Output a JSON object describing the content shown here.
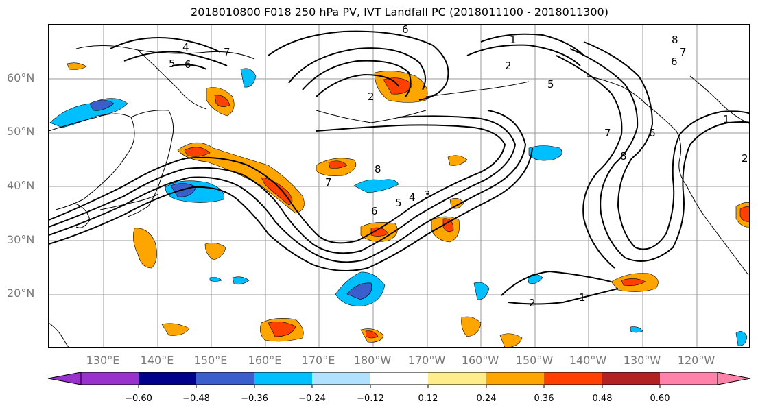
{
  "title": "2018010800 F018 250 hPa PV, IVT Landfall PC (2018011100 - 2018011300)",
  "lat_labels": [
    "60°N",
    "50°N",
    "40°N",
    "30°N",
    "20°N"
  ],
  "lon_labels": [
    "130°E",
    "140°E",
    "150°E",
    "160°E",
    "170°E",
    "180°W",
    "170°W",
    "160°W",
    "150°W",
    "140°W",
    "130°W",
    "120°W"
  ],
  "colorbar": {
    "ticks": [
      "−0.60",
      "−0.48",
      "−0.36",
      "−0.24",
      "−0.12",
      "0.12",
      "0.24",
      "0.36",
      "0.48",
      "0.60"
    ],
    "colors": [
      "#9932CC",
      "#00008B",
      "#3A5FCD",
      "#00BFFF",
      "#B0E2FF",
      "#FFFFFF",
      "#FFEC8B",
      "#FFA500",
      "#FF4000",
      "#B22222",
      "#FF82AB"
    ]
  },
  "contour_labels": [
    "1",
    "2",
    "3",
    "4",
    "5",
    "6",
    "7",
    "8"
  ]
}
